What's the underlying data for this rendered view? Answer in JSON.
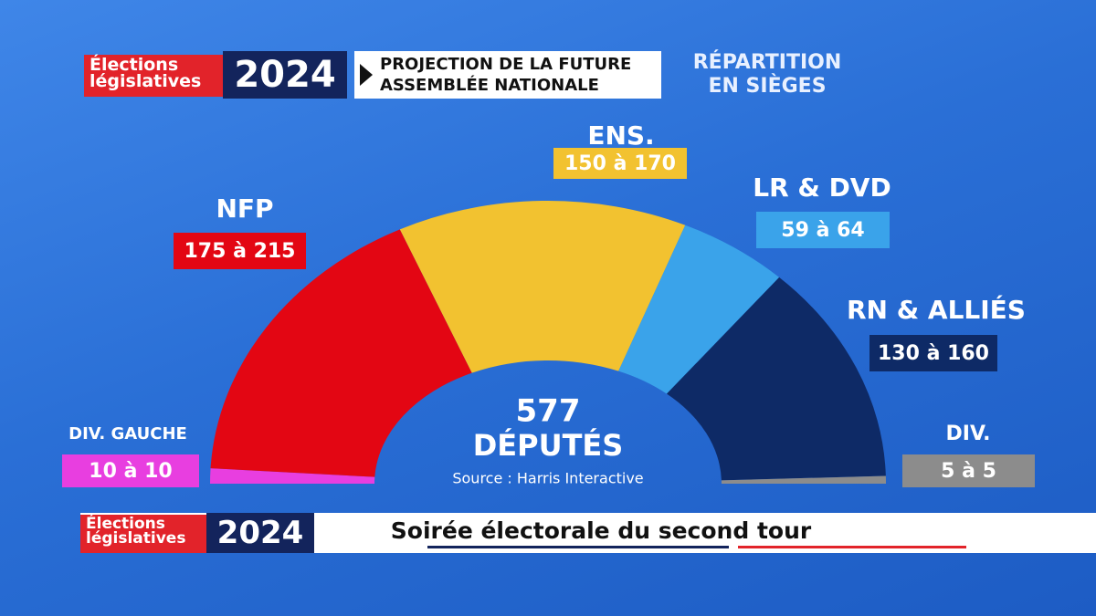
{
  "header": {
    "badge_line1": "Élections",
    "badge_line2": "législatives",
    "year": "2024",
    "title": "PROJECTION DE LA FUTURE ASSEMBLÉE NATIONALE",
    "subtitle": "RÉPARTITION EN SIÈGES"
  },
  "chart_data": {
    "type": "hemicycle",
    "categories": [
      "DIV. GAUCHE",
      "NFP",
      "ENS.",
      "LR & DVD",
      "RN & ALLIÉS",
      "DIV."
    ],
    "low": [
      10,
      175,
      150,
      59,
      130,
      5
    ],
    "high": [
      10,
      215,
      170,
      64,
      160,
      5
    ],
    "value_labels": [
      "10 à 10",
      "175 à 215",
      "150 à 170",
      "59 à 64",
      "130 à 160",
      "5 à 5"
    ],
    "colors": [
      "#e83ee0",
      "#e30613",
      "#f2c230",
      "#3aa3ea",
      "#0e2a66",
      "#8c8c8c"
    ],
    "total": 577,
    "total_label": "DÉPUTÉS",
    "source": "Source : Harris Interactive"
  },
  "footer": {
    "badge_line1": "Élections",
    "badge_line2": "législatives",
    "year": "2024",
    "title": "Soirée électorale du second tour"
  }
}
